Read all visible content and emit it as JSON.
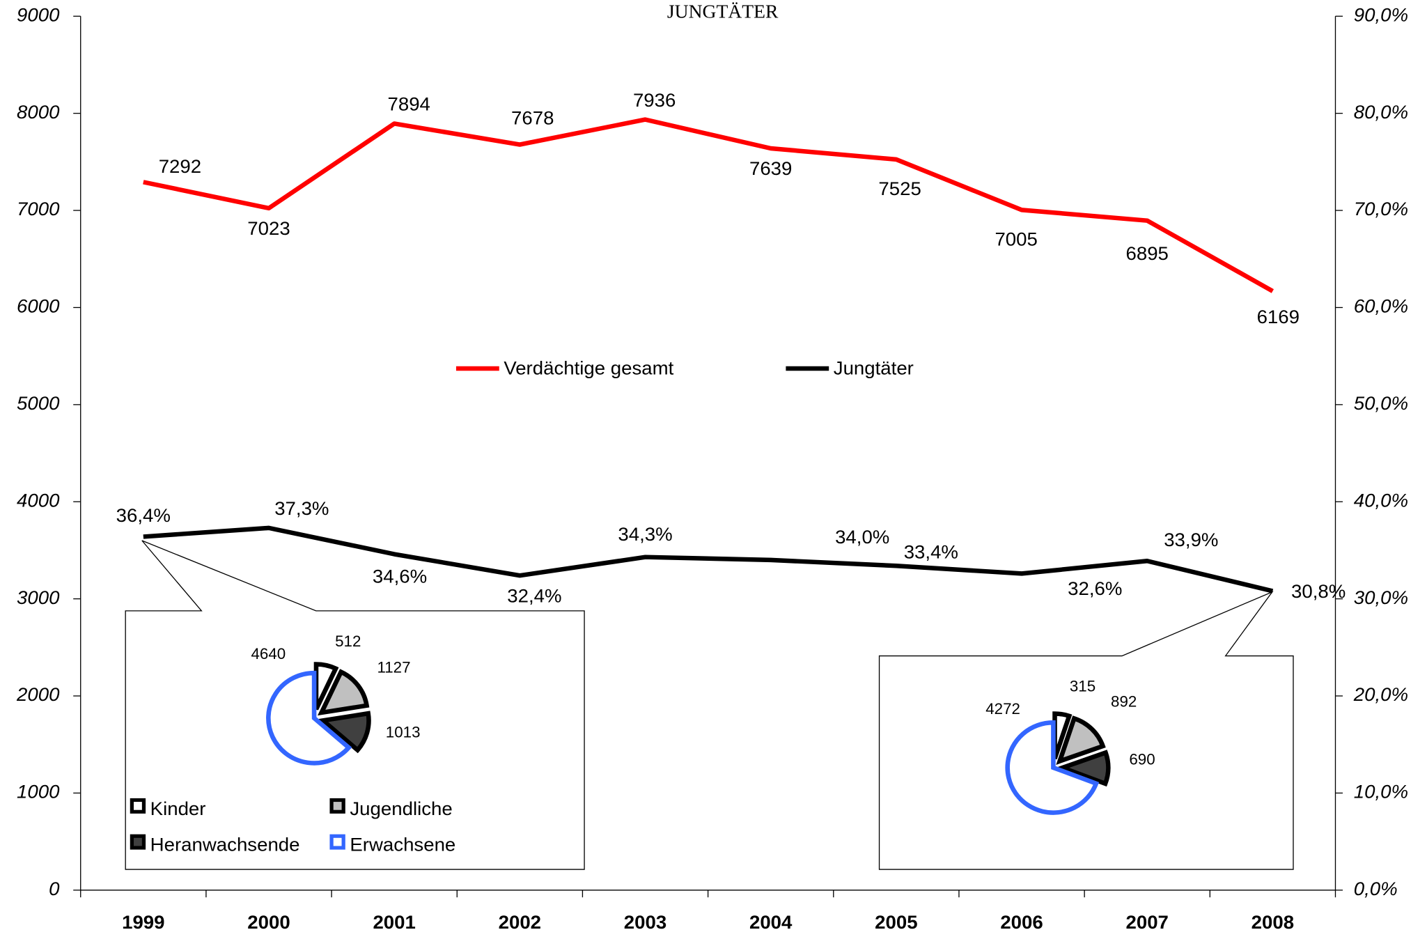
{
  "chart_data": [
    {
      "type": "line",
      "title": "JUNGTÄTER",
      "categories": [
        "1999",
        "2000",
        "2001",
        "2002",
        "2003",
        "2004",
        "2005",
        "2006",
        "2007",
        "2008"
      ],
      "series": [
        {
          "name": "Verdächtige gesamt",
          "color": "#ff0000",
          "values": [
            7292,
            7023,
            7894,
            7678,
            7936,
            7639,
            7525,
            7005,
            6895,
            6169
          ]
        },
        {
          "name": "Jungtäter",
          "color": "#000000",
          "axis": "y2",
          "values": [
            36.4,
            37.3,
            34.6,
            32.4,
            34.3,
            34.0,
            33.4,
            32.6,
            33.9,
            30.8
          ],
          "value_labels": [
            "36,4%",
            "37,3%",
            "34,6%",
            "32,4%",
            "34,3%",
            "34,0%",
            "33,4%",
            "32,6%",
            "33,9%",
            "30,8%"
          ]
        }
      ],
      "ylim": [
        0,
        9000
      ],
      "yticks": [
        0,
        1000,
        2000,
        3000,
        4000,
        5000,
        6000,
        7000,
        8000,
        9000
      ],
      "y2lim": [
        0,
        90
      ],
      "y2ticks": [
        {
          "value": 0,
          "label": "0,0%"
        },
        {
          "value": 10,
          "label": "10,0%"
        },
        {
          "value": 20,
          "label": "20,0%"
        },
        {
          "value": 30,
          "label": "30,0%"
        },
        {
          "value": 40,
          "label": "40,0%"
        },
        {
          "value": 50,
          "label": "50,0%"
        },
        {
          "value": 60,
          "label": "60,0%"
        },
        {
          "value": 70,
          "label": "70,0%"
        },
        {
          "value": 80,
          "label": "80,0%"
        },
        {
          "value": 90,
          "label": "90,0%"
        }
      ]
    },
    {
      "type": "pie",
      "categories": [
        "Kinder",
        "Jugendliche",
        "Heranwachsende",
        "Erwachsene"
      ],
      "values": [
        512,
        1127,
        1013,
        4640
      ],
      "colors": [
        "#ffffff",
        "#c0c0c0",
        "#404040",
        "#ffffff"
      ],
      "edge_colors": [
        "#000000",
        "#000000",
        "#000000",
        "#3366ff"
      ]
    },
    {
      "type": "pie",
      "values": [
        315,
        892,
        690,
        4272
      ],
      "colors": [
        "#ffffff",
        "#c0c0c0",
        "#404040",
        "#ffffff"
      ],
      "edge_colors": [
        "#000000",
        "#000000",
        "#000000",
        "#3366ff"
      ]
    }
  ]
}
